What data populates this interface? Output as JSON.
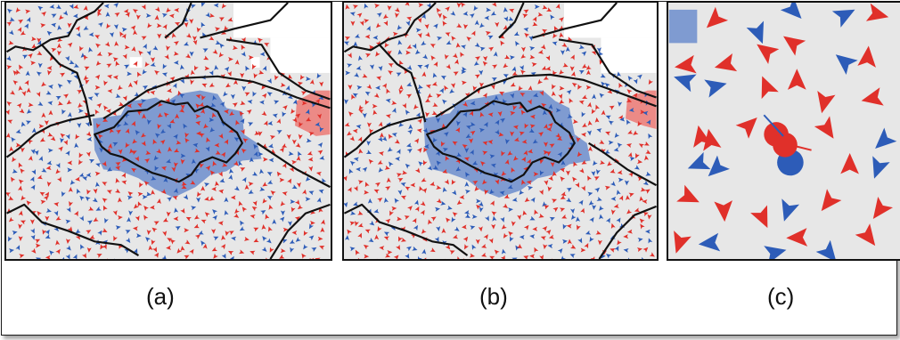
{
  "panels": [
    {
      "id": "a",
      "label": "(a)"
    },
    {
      "id": "b",
      "label": "(b)"
    },
    {
      "id": "c",
      "label": "(c)"
    }
  ],
  "colors": {
    "background": "#e7e7e7",
    "red": "#e0302a",
    "blue": "#2d5cb8",
    "region_blue": "#7f9bd1",
    "region_red": "#ec8a86",
    "border": "#111111"
  }
}
